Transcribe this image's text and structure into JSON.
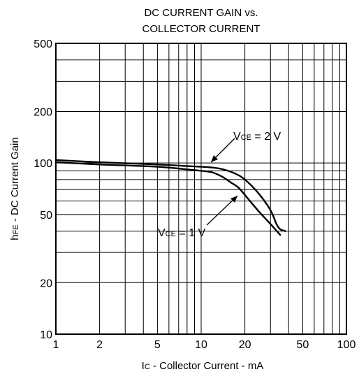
{
  "chart_data": {
    "type": "line",
    "title_lines": [
      "DC CURRENT GAIN vs.",
      "COLLECTOR CURRENT"
    ],
    "xlabel": {
      "main": "I",
      "sub": "C",
      "rest": " - Collector Current - mA"
    },
    "ylabel": {
      "main": "h",
      "sub": "FE",
      "rest": " - DC Current Gain"
    },
    "x_scale": "log",
    "y_scale": "log",
    "xlim": [
      1,
      100
    ],
    "ylim": [
      10,
      500
    ],
    "x_ticks": [
      {
        "value": 1,
        "label": "1"
      },
      {
        "value": 2,
        "label": "2"
      },
      {
        "value": 5,
        "label": "5"
      },
      {
        "value": 10,
        "label": "10"
      },
      {
        "value": 20,
        "label": "20"
      },
      {
        "value": 50,
        "label": "50"
      },
      {
        "value": 100,
        "label": "100"
      }
    ],
    "y_ticks": [
      {
        "value": 10,
        "label": "10"
      },
      {
        "value": 20,
        "label": "20"
      },
      {
        "value": 50,
        "label": "50"
      },
      {
        "value": 100,
        "label": "100"
      },
      {
        "value": 200,
        "label": "200"
      },
      {
        "value": 500,
        "label": "500"
      }
    ],
    "x_grid": [
      1,
      2,
      3,
      4,
      5,
      6,
      7,
      8,
      9,
      10,
      20,
      30,
      40,
      50,
      60,
      70,
      80,
      90,
      100
    ],
    "y_grid": [
      10,
      20,
      30,
      40,
      50,
      60,
      70,
      80,
      90,
      100,
      200,
      300,
      400,
      500
    ],
    "grid": true,
    "series": [
      {
        "label_parts": {
          "main": "V",
          "sub": "CE",
          "rest": " = 2 V"
        },
        "x": [
          1,
          2,
          5,
          10,
          12,
          14,
          17,
          20,
          25,
          30,
          33,
          35,
          38
        ],
        "y": [
          104,
          101,
          98,
          95,
          94,
          92,
          87,
          80,
          66,
          53,
          44,
          41,
          40
        ]
      },
      {
        "label_parts": {
          "main": "V",
          "sub": "CE",
          "rest": " = 1 V"
        },
        "x": [
          1,
          2,
          5,
          10,
          12,
          14,
          16,
          18,
          20,
          25,
          30,
          35
        ],
        "y": [
          101,
          98,
          95,
          90,
          88,
          83,
          77,
          72,
          65,
          52,
          44,
          38
        ]
      }
    ]
  }
}
